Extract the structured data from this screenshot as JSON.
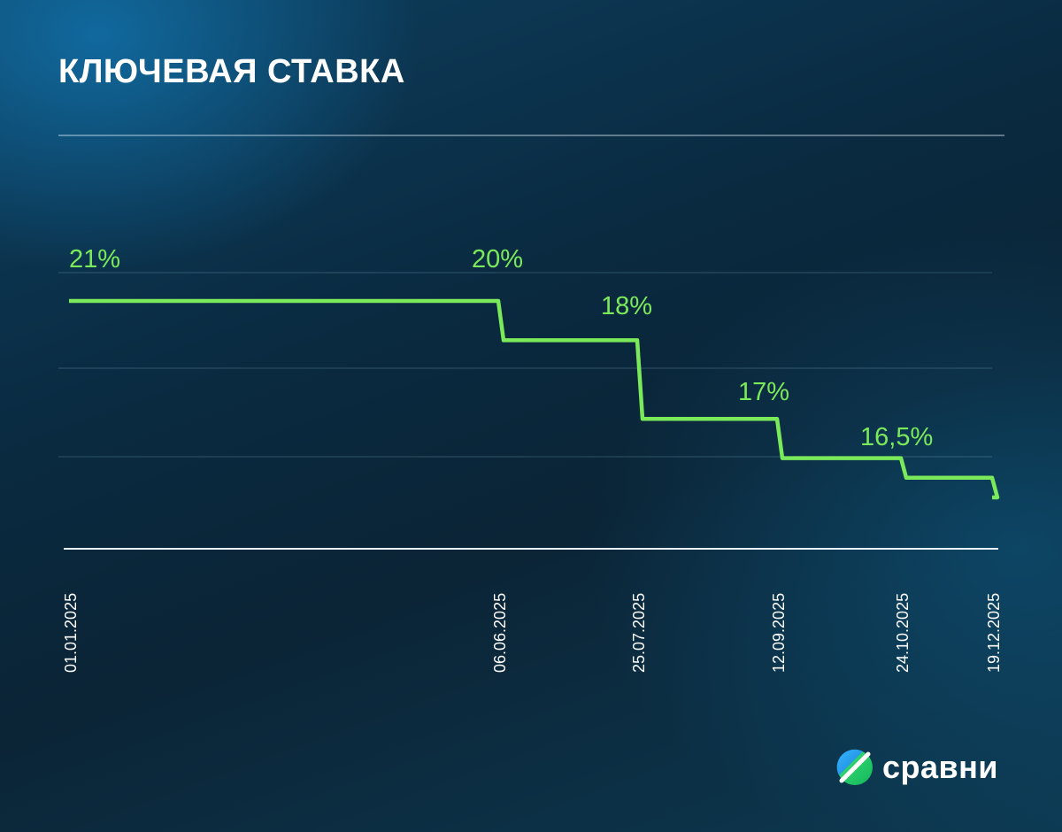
{
  "title": "КЛЮЧЕВАЯ СТАВКА",
  "brand": {
    "name": "сравни",
    "icon": "sravni-logo-icon"
  },
  "colors": {
    "line": "#7bea5a",
    "label": "#7bea5a",
    "text": "#ffffff",
    "grid": "rgba(150,200,225,0.22)",
    "axis": "#e8f2f7"
  },
  "chart_data": {
    "type": "line",
    "step": true,
    "title": "КЛЮЧЕВАЯ СТАВКА",
    "xlabel": "",
    "ylabel": "",
    "dates": [
      "01.01.2025",
      "06.06.2025",
      "25.07.2025",
      "12.09.2025",
      "24.10.2025",
      "19.12.2025"
    ],
    "series": [
      {
        "values": [
          21,
          20,
          18,
          17,
          16.5,
          16
        ]
      }
    ],
    "data_labels": [
      "21%",
      "20%",
      "18%",
      "17%",
      "16,5%",
      ""
    ],
    "ylim": [
      15.4,
      21.2
    ],
    "grid": true
  }
}
